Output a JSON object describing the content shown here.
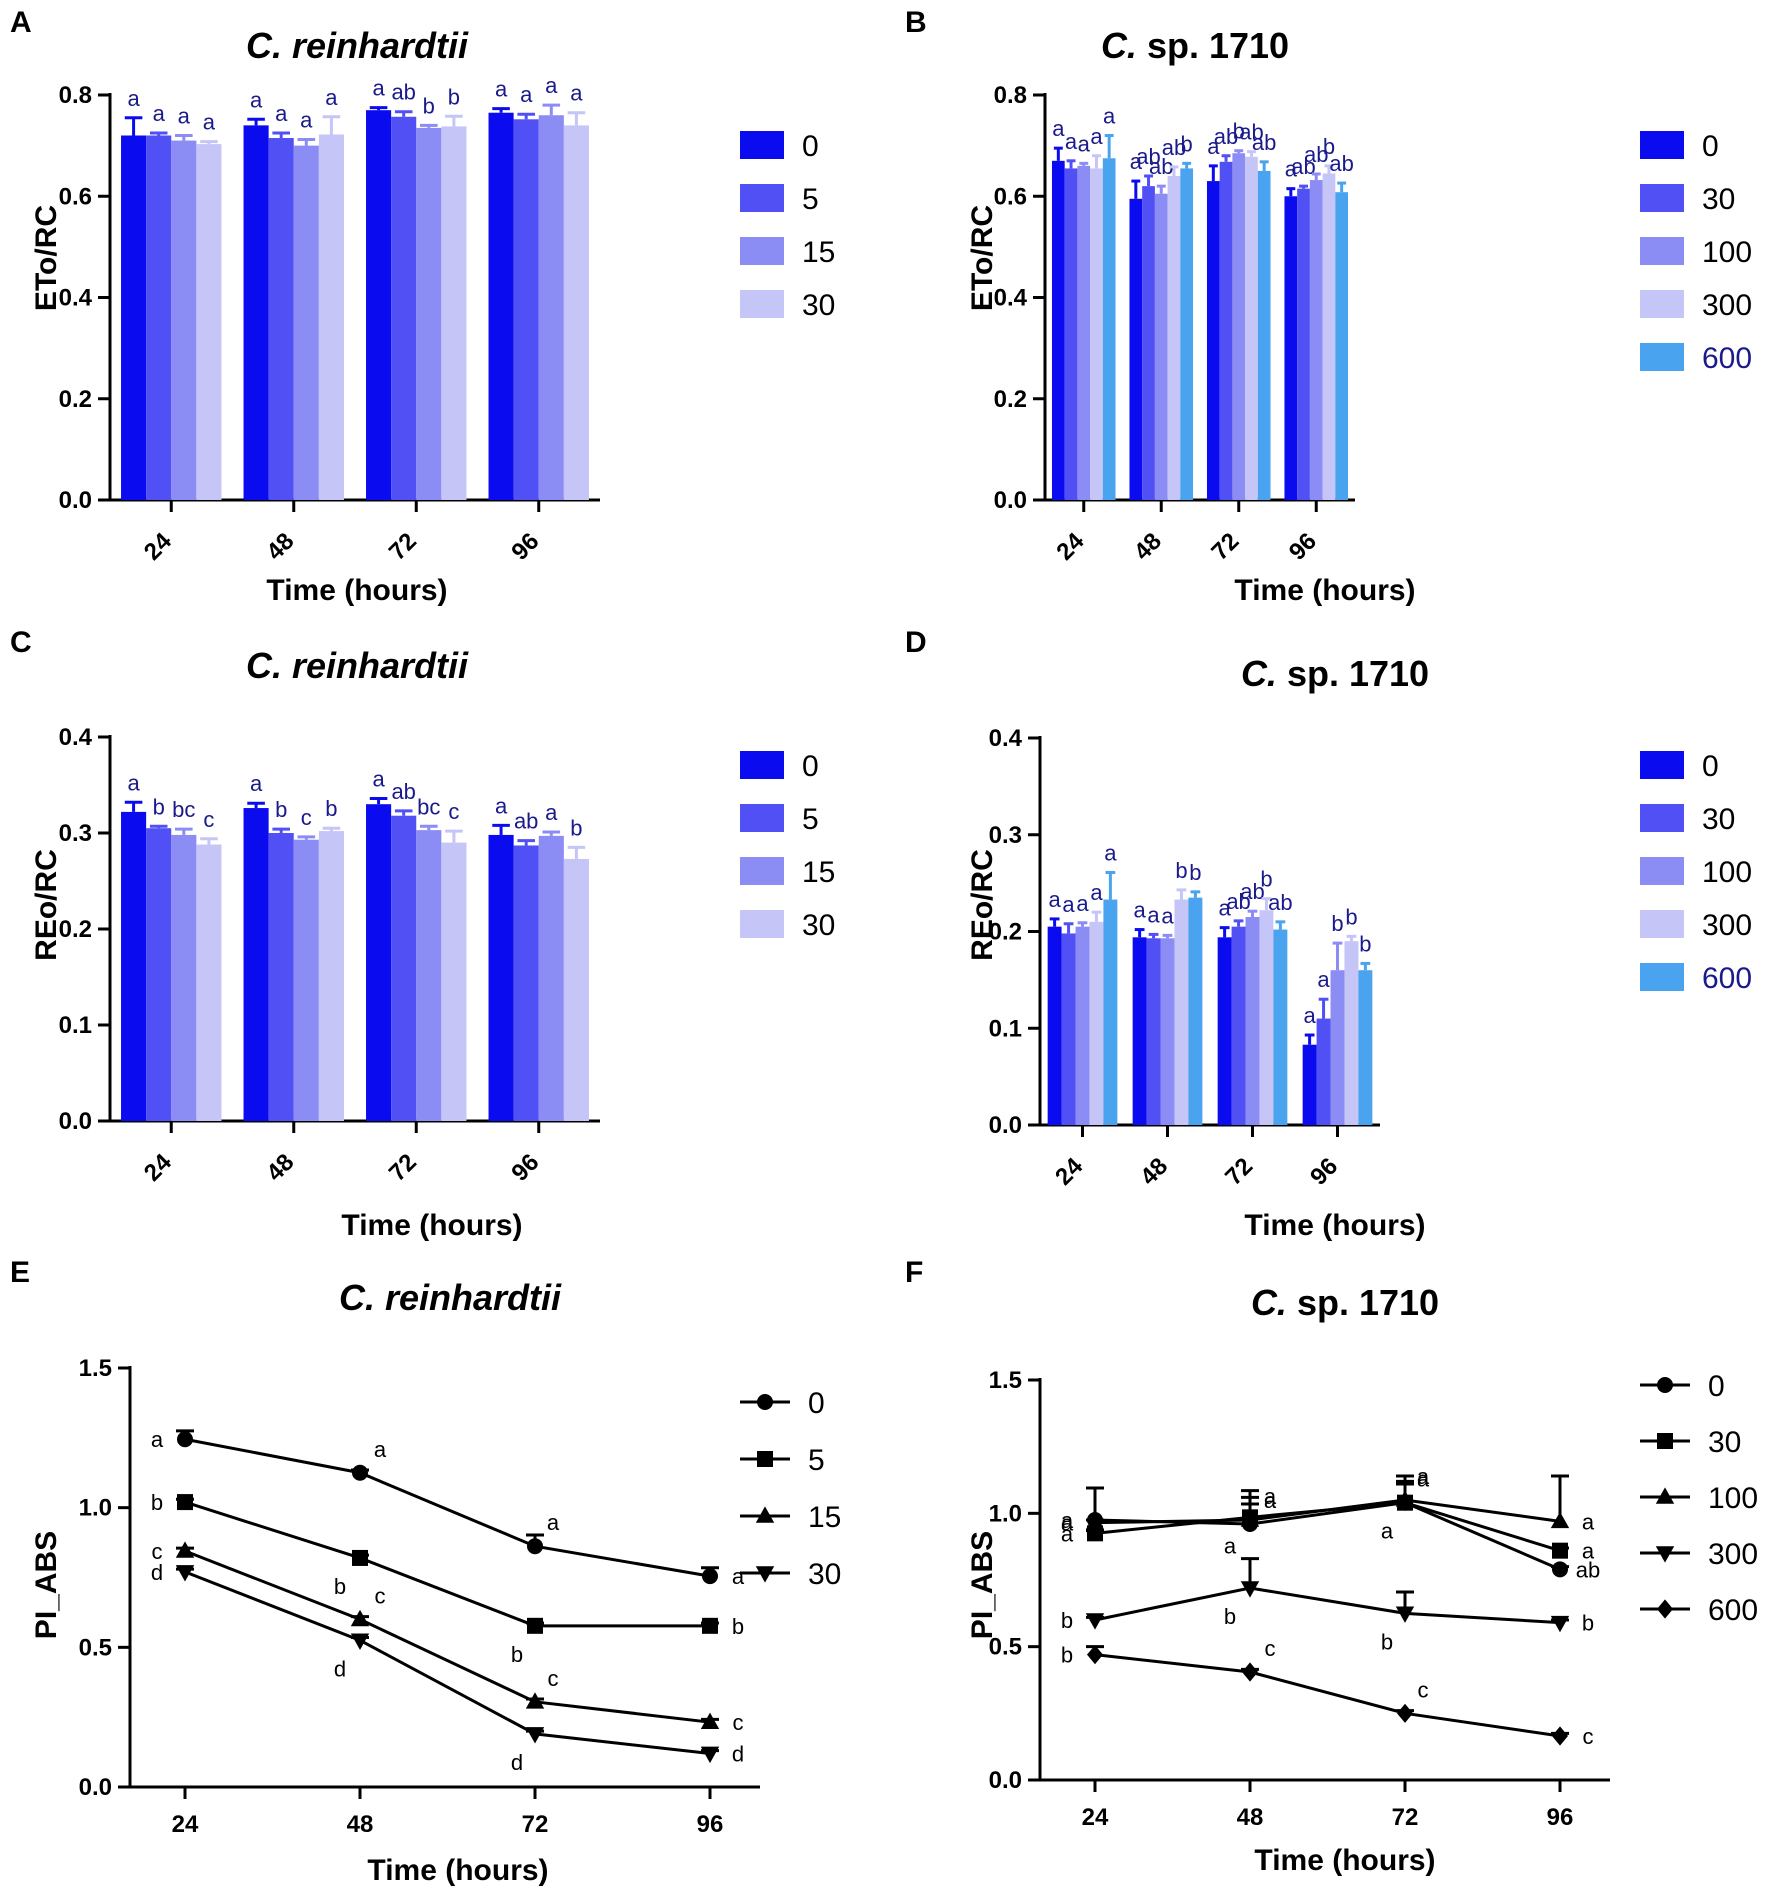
{
  "chart_data": [
    {
      "panel": "A",
      "type": "bar",
      "title": {
        "italic": "C. reinhardtii",
        "rest": ""
      },
      "xlabel": "Time (hours)",
      "ylabel": "ETo/RC",
      "categories": [
        "24",
        "48",
        "72",
        "96"
      ],
      "ylim": [
        0,
        0.8
      ],
      "yticks": [
        "0.0",
        "0.2",
        "0.4",
        "0.6",
        "0.8"
      ],
      "tick_values": [
        0,
        0.2,
        0.4,
        0.6,
        0.8
      ],
      "series": [
        {
          "name": "0",
          "color": "#0b0bf0",
          "values": [
            0.72,
            0.74,
            0.77,
            0.765
          ],
          "errors": [
            0.035,
            0.012,
            0.005,
            0.008
          ],
          "sig": [
            "a",
            "a",
            "a",
            "a"
          ]
        },
        {
          "name": "5",
          "color": "#5050f5",
          "values": [
            0.72,
            0.715,
            0.757,
            0.752
          ],
          "errors": [
            0.005,
            0.01,
            0.01,
            0.01
          ],
          "sig": [
            "a",
            "a",
            "ab",
            "a"
          ]
        },
        {
          "name": "15",
          "color": "#8c8cf5",
          "values": [
            0.71,
            0.7,
            0.735,
            0.76
          ],
          "errors": [
            0.01,
            0.012,
            0.005,
            0.02
          ],
          "sig": [
            "a",
            "a",
            "b",
            "a"
          ]
        },
        {
          "name": "30",
          "color": "#c5c5f8",
          "values": [
            0.703,
            0.722,
            0.738,
            0.74
          ],
          "errors": [
            0.005,
            0.035,
            0.02,
            0.025
          ],
          "sig": [
            "a",
            "a",
            "b",
            "a"
          ]
        }
      ]
    },
    {
      "panel": "B",
      "type": "bar",
      "title": {
        "italic": "C.",
        "rest": " sp. 1710"
      },
      "xlabel": "Time (hours)",
      "ylabel": "ETo/RC",
      "categories": [
        "24",
        "48",
        "72",
        "96"
      ],
      "ylim": [
        0,
        0.8
      ],
      "yticks": [
        "0.0",
        "0.2",
        "0.4",
        "0.6",
        "0.8"
      ],
      "tick_values": [
        0,
        0.2,
        0.4,
        0.6,
        0.8
      ],
      "series": [
        {
          "name": "0",
          "color": "#0b0bf0",
          "values": [
            0.67,
            0.595,
            0.63,
            0.6
          ],
          "errors": [
            0.025,
            0.035,
            0.03,
            0.015
          ],
          "sig": [
            "a",
            "a",
            "a",
            "a"
          ]
        },
        {
          "name": "30",
          "color": "#5050f5",
          "values": [
            0.655,
            0.62,
            0.668,
            0.615
          ],
          "errors": [
            0.015,
            0.02,
            0.012,
            0.005
          ],
          "sig": [
            "a",
            "ab",
            "ab",
            "ab"
          ]
        },
        {
          "name": "100",
          "color": "#8c8cf5",
          "values": [
            0.66,
            0.605,
            0.685,
            0.632
          ],
          "errors": [
            0.005,
            0.015,
            0.005,
            0.012
          ],
          "sig": [
            "a",
            "ab",
            "b",
            "ab"
          ]
        },
        {
          "name": "300",
          "color": "#c5c5f8",
          "values": [
            0.655,
            0.64,
            0.678,
            0.645
          ],
          "errors": [
            0.025,
            0.018,
            0.01,
            0.015
          ],
          "sig": [
            "a",
            "ab",
            "ab",
            "b"
          ]
        },
        {
          "name": "600",
          "color": "#4aa3ee",
          "values": [
            0.675,
            0.655,
            0.65,
            0.608
          ],
          "errors": [
            0.045,
            0.01,
            0.018,
            0.018
          ],
          "sig": [
            "a",
            "b",
            "ab",
            "ab"
          ]
        }
      ]
    },
    {
      "panel": "C",
      "type": "bar",
      "title": {
        "italic": "C. reinhardtii",
        "rest": ""
      },
      "xlabel": "Time (hours)",
      "ylabel": "REo/RC",
      "categories": [
        "24",
        "48",
        "72",
        "96"
      ],
      "ylim": [
        0,
        0.4
      ],
      "yticks": [
        "0.0",
        "0.1",
        "0.2",
        "0.3",
        "0.4"
      ],
      "tick_values": [
        0,
        0.1,
        0.2,
        0.3,
        0.4
      ],
      "series": [
        {
          "name": "0",
          "color": "#0b0bf0",
          "values": [
            0.322,
            0.326,
            0.33,
            0.298
          ],
          "errors": [
            0.01,
            0.005,
            0.006,
            0.01
          ],
          "sig": [
            "a",
            "a",
            "a",
            "a"
          ]
        },
        {
          "name": "5",
          "color": "#5050f5",
          "values": [
            0.305,
            0.3,
            0.318,
            0.287
          ],
          "errors": [
            0.002,
            0.004,
            0.005,
            0.005
          ],
          "sig": [
            "b",
            "b",
            "ab",
            "ab"
          ]
        },
        {
          "name": "15",
          "color": "#8c8cf5",
          "values": [
            0.298,
            0.293,
            0.303,
            0.297
          ],
          "errors": [
            0.006,
            0.003,
            0.004,
            0.004
          ],
          "sig": [
            "bc",
            "c",
            "bc",
            "a"
          ]
        },
        {
          "name": "30",
          "color": "#c5c5f8",
          "values": [
            0.288,
            0.302,
            0.29,
            0.273
          ],
          "errors": [
            0.006,
            0.003,
            0.012,
            0.012
          ],
          "sig": [
            "c",
            "b",
            "c",
            "b"
          ]
        }
      ]
    },
    {
      "panel": "D",
      "type": "bar",
      "title": {
        "italic": "C.",
        "rest": " sp. 1710"
      },
      "xlabel": "Time (hours)",
      "ylabel": "REo/RC",
      "categories": [
        "24",
        "48",
        "72",
        "96"
      ],
      "ylim": [
        0,
        0.4
      ],
      "yticks": [
        "0.0",
        "0.1",
        "0.2",
        "0.3",
        "0.4"
      ],
      "tick_values": [
        0,
        0.1,
        0.2,
        0.3,
        0.4
      ],
      "series": [
        {
          "name": "0",
          "color": "#0b0bf0",
          "values": [
            0.205,
            0.194,
            0.194,
            0.083
          ],
          "errors": [
            0.008,
            0.008,
            0.01,
            0.01
          ],
          "sig": [
            "a",
            "a",
            "a",
            "a"
          ]
        },
        {
          "name": "30",
          "color": "#5050f5",
          "values": [
            0.198,
            0.193,
            0.205,
            0.11
          ],
          "errors": [
            0.01,
            0.004,
            0.006,
            0.02
          ],
          "sig": [
            "a",
            "a",
            "ab",
            "a"
          ]
        },
        {
          "name": "100",
          "color": "#8c8cf5",
          "values": [
            0.205,
            0.193,
            0.215,
            0.16
          ],
          "errors": [
            0.004,
            0.003,
            0.006,
            0.028
          ],
          "sig": [
            "a",
            "a",
            "ab",
            "b"
          ]
        },
        {
          "name": "300",
          "color": "#c5c5f8",
          "values": [
            0.21,
            0.233,
            0.222,
            0.19
          ],
          "errors": [
            0.01,
            0.01,
            0.012,
            0.005
          ],
          "sig": [
            "a",
            "b",
            "b",
            "b"
          ]
        },
        {
          "name": "600",
          "color": "#4aa3ee",
          "values": [
            0.233,
            0.235,
            0.202,
            0.16
          ],
          "errors": [
            0.028,
            0.006,
            0.008,
            0.007
          ],
          "sig": [
            "a",
            "b",
            "ab",
            "b"
          ]
        }
      ]
    },
    {
      "panel": "E",
      "type": "line",
      "title": {
        "italic": "C. reinhardtii",
        "rest": ""
      },
      "xlabel": "Time (hours)",
      "ylabel": "PI_ABS",
      "x": [
        "24",
        "48",
        "72",
        "96"
      ],
      "ylim": [
        0,
        1.5
      ],
      "yticks": [
        "0.0",
        "0.5",
        "1.0",
        "1.5"
      ],
      "tick_values": [
        0,
        0.5,
        1.0,
        1.5
      ],
      "series": [
        {
          "name": "0",
          "marker": "circle",
          "values": [
            1.245,
            1.125,
            0.862,
            0.755
          ],
          "errors": [
            0.03,
            0.01,
            0.04,
            0.03
          ],
          "sig": [
            "a",
            "a",
            "a",
            "a"
          ]
        },
        {
          "name": "5",
          "marker": "square",
          "values": [
            1.02,
            0.82,
            0.577,
            0.577
          ],
          "errors": [
            0.01,
            0.01,
            0.01,
            0.01
          ],
          "sig": [
            "b",
            "b",
            "b",
            "b"
          ]
        },
        {
          "name": "15",
          "marker": "triangle-up",
          "values": [
            0.845,
            0.6,
            0.305,
            0.232
          ],
          "errors": [
            0.01,
            0.01,
            0.01,
            0.01
          ],
          "sig": [
            "c",
            "c",
            "c",
            "c"
          ]
        },
        {
          "name": "30",
          "marker": "triangle-down",
          "values": [
            0.77,
            0.525,
            0.19,
            0.12
          ],
          "errors": [
            0.01,
            0.01,
            0.01,
            0.01
          ],
          "sig": [
            "d",
            "d",
            "d",
            "d"
          ]
        }
      ]
    },
    {
      "panel": "F",
      "type": "line",
      "title": {
        "italic": "C.",
        "rest": " sp. 1710"
      },
      "xlabel": "Time (hours)",
      "ylabel": "PI_ABS",
      "x": [
        "24",
        "48",
        "72",
        "96"
      ],
      "ylim": [
        0,
        1.5
      ],
      "yticks": [
        "0.0",
        "0.5",
        "1.0",
        "1.5"
      ],
      "tick_values": [
        0,
        0.5,
        1.0,
        1.5
      ],
      "series": [
        {
          "name": "0",
          "marker": "circle",
          "values": [
            0.975,
            0.96,
            1.04,
            0.79
          ],
          "errors": [
            0.12,
            0.1,
            0.1,
            0.01
          ],
          "sig": [
            "a",
            "a",
            "a",
            "ab"
          ]
        },
        {
          "name": "30",
          "marker": "square",
          "values": [
            0.925,
            0.985,
            1.04,
            0.86
          ],
          "errors": [
            0.01,
            0.1,
            0.08,
            0.01
          ],
          "sig": [
            "a",
            "a",
            "a",
            "a"
          ]
        },
        {
          "name": "100",
          "marker": "triangle-up",
          "values": [
            0.965,
            0.975,
            1.05,
            0.97
          ],
          "errors": [
            0.01,
            0.06,
            0.06,
            0.17
          ],
          "sig": [
            "a",
            "a",
            "a",
            "a"
          ]
        },
        {
          "name": "300",
          "marker": "triangle-down",
          "values": [
            0.6,
            0.72,
            0.625,
            0.59
          ],
          "errors": [
            0.01,
            0.11,
            0.08,
            0.01
          ],
          "sig": [
            "b",
            "b",
            "b",
            "b"
          ]
        },
        {
          "name": "600",
          "marker": "diamond",
          "values": [
            0.47,
            0.405,
            0.25,
            0.165
          ],
          "errors": [
            0.03,
            0.01,
            0.01,
            0.01
          ],
          "sig": [
            "b",
            "c",
            "c",
            "c"
          ]
        }
      ]
    }
  ]
}
